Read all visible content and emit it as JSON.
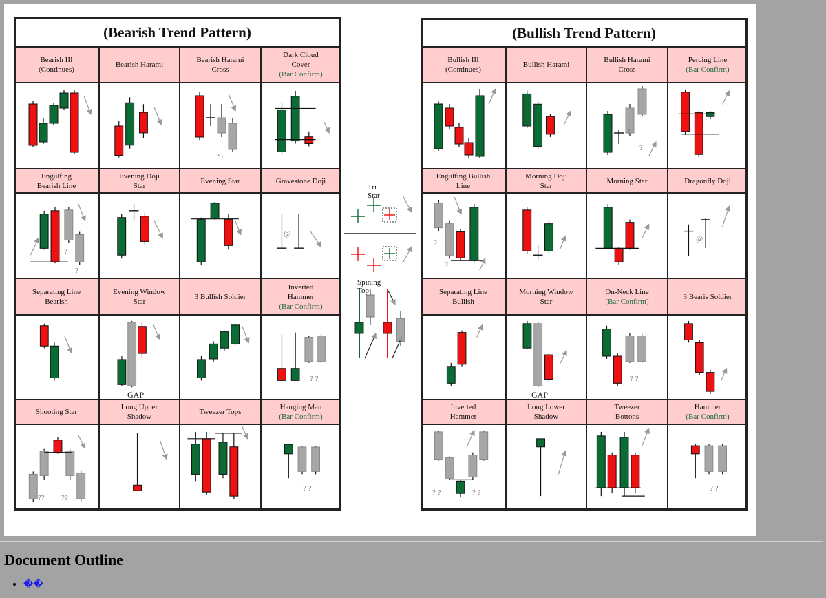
{
  "bearish": {
    "title": "(Bearish Trend Pattern)",
    "cells": [
      {
        "name": [
          "Bearish III",
          "(Continues)"
        ]
      },
      {
        "name": [
          "Bearish Harami"
        ]
      },
      {
        "name": [
          "Bearish Harami",
          "Cross"
        ],
        "notes": [
          "? ?"
        ]
      },
      {
        "name": [
          "Dark Cloud",
          "Cover"
        ],
        "confirm": "(Bar Confirm)"
      },
      {
        "name": [
          "Engulfing",
          "Bearish Line"
        ],
        "notes": [
          "?",
          "?"
        ]
      },
      {
        "name": [
          "Evening Doji",
          "Star"
        ]
      },
      {
        "name": [
          "Evening Star"
        ]
      },
      {
        "name": [
          "Gravestone Doji"
        ],
        "notes": [
          "@"
        ]
      },
      {
        "name": [
          "Separating Line",
          "Bearish"
        ]
      },
      {
        "name": [
          "Evening Window",
          "Star"
        ],
        "notes": [
          "GAP"
        ]
      },
      {
        "name": [
          "3 Bullish Soldier"
        ]
      },
      {
        "name": [
          "Inverted",
          "Hammer"
        ],
        "confirm": "(Bar Confirm)",
        "notes": [
          "? ?"
        ]
      },
      {
        "name": [
          "Shooting Star"
        ],
        "notes": [
          "??",
          "??"
        ]
      },
      {
        "name": [
          "Long Upper",
          "Shadow"
        ]
      },
      {
        "name": [
          "Tweezer Tops"
        ]
      },
      {
        "name": [
          "Hanging Man"
        ],
        "confirm": "(Bar Confirm)",
        "notes": [
          "? ?"
        ]
      }
    ]
  },
  "bullish": {
    "title": "(Bullish Trend Pattern)",
    "cells": [
      {
        "name": [
          "Bullish III",
          "(Continues)"
        ]
      },
      {
        "name": [
          "Bullish Harami"
        ]
      },
      {
        "name": [
          "Bullish Harami",
          "Cross"
        ],
        "notes": [
          "?",
          "?"
        ]
      },
      {
        "name": [
          "Percing Line"
        ],
        "confirm": "(Bar Confirm)"
      },
      {
        "name": [
          "Engulfing Bullish",
          "Line"
        ],
        "notes": [
          "?",
          "?"
        ]
      },
      {
        "name": [
          "Morning Doji",
          "Star"
        ]
      },
      {
        "name": [
          "Morning Star"
        ]
      },
      {
        "name": [
          "Dragonfly Doji"
        ],
        "notes": [
          "@"
        ]
      },
      {
        "name": [
          "Separating Line",
          "Bullish"
        ]
      },
      {
        "name": [
          "Morning Window",
          "Star"
        ],
        "notes": [
          "GAP"
        ]
      },
      {
        "name": [
          "On-Neck Line"
        ],
        "confirm": "(Bar Confirm)",
        "notes": [
          "? ?"
        ]
      },
      {
        "name": [
          "3 Bearis Soldier"
        ]
      },
      {
        "name": [
          "Inverted",
          "Hammer"
        ],
        "notes": [
          "? ?",
          "? ?"
        ]
      },
      {
        "name": [
          "Long Lower",
          "Shadow"
        ]
      },
      {
        "name": [
          "Tweezer",
          "Bottons"
        ]
      },
      {
        "name": [
          "Hammer"
        ],
        "confirm": "(Bar Confirm)",
        "notes": [
          "? ?"
        ]
      }
    ]
  },
  "middle": {
    "tri_star": "Tri Star",
    "spinning_top": "Spining Top"
  },
  "outline": {
    "heading": "Document Outline",
    "items": [
      "��"
    ]
  }
}
